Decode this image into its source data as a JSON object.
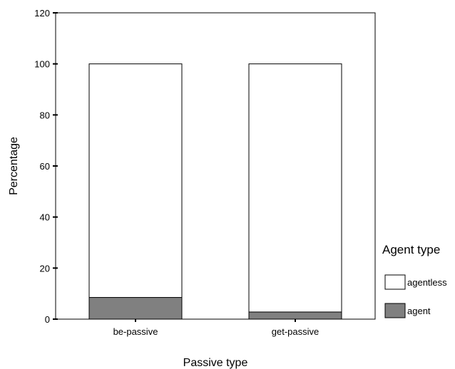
{
  "chart_data": {
    "type": "bar",
    "stacked": true,
    "categories": [
      "be-passive",
      "get-passive"
    ],
    "series": [
      {
        "name": "agent",
        "values": [
          8.5,
          2.8
        ],
        "color": "#808080"
      },
      {
        "name": "agentless",
        "values": [
          91.5,
          97.2
        ],
        "color": "#ffffff"
      }
    ],
    "xlabel": "Passive type",
    "ylabel": "Percentage",
    "ylim": [
      0,
      120
    ],
    "yticks": [
      0,
      20,
      40,
      60,
      80,
      100,
      120
    ],
    "grid": false,
    "legend": {
      "title": "Agent type",
      "placement": "right",
      "items": [
        {
          "label": "agentless",
          "color": "#ffffff"
        },
        {
          "label": "agent",
          "color": "#808080"
        }
      ]
    }
  }
}
